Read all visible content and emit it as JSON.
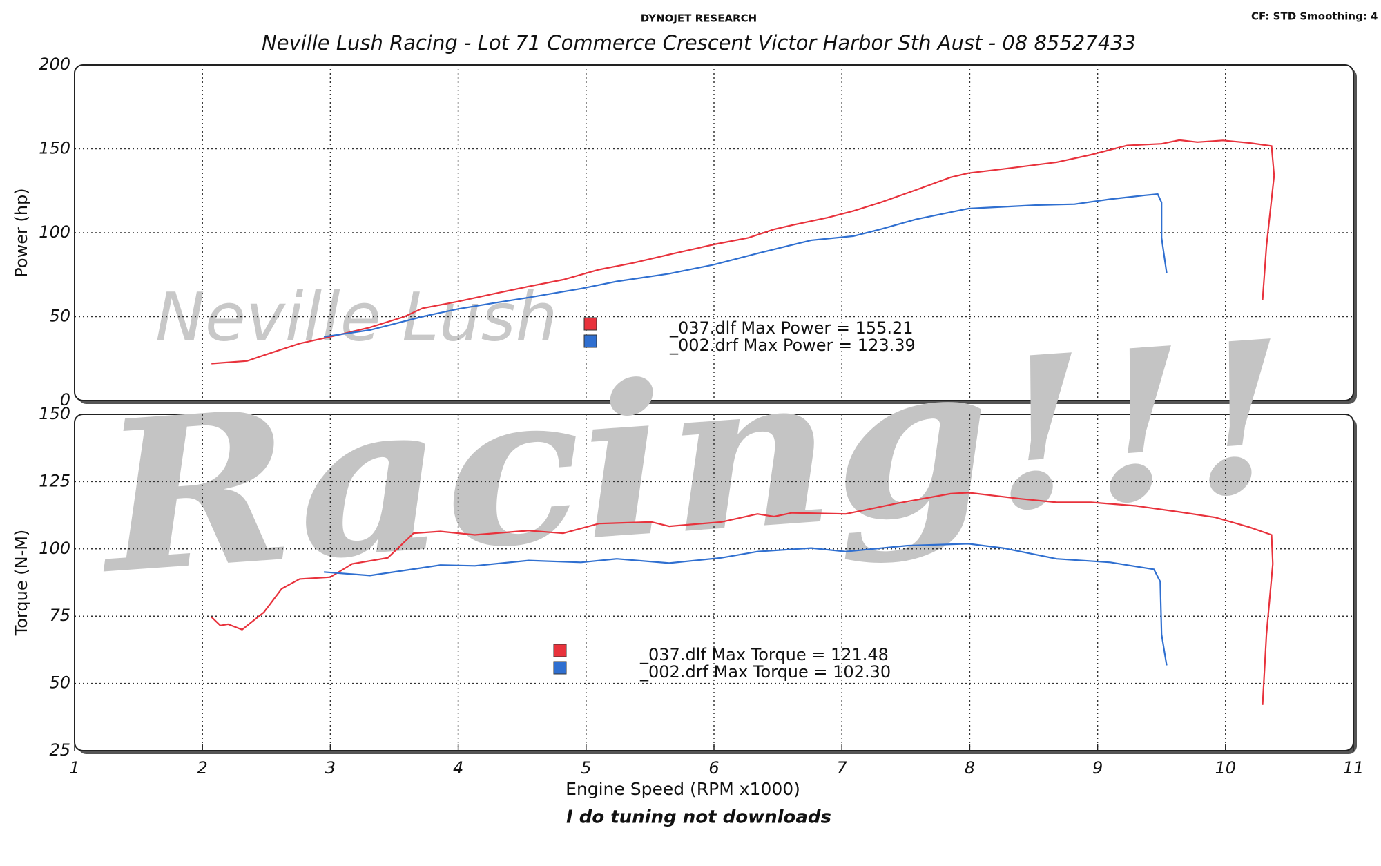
{
  "header": {
    "title": "DYNOJET RESEARCH",
    "settings": "CF: STD  Smoothing: 4",
    "subtitle": "Neville Lush Racing  - Lot 71 Commerce Crescent  Victor Harbor Sth Aust  - 08 85527433"
  },
  "watermark": [
    "Neville Lush",
    "Racing!!!"
  ],
  "footer": "I do tuning not downloads",
  "chart_data": [
    {
      "type": "line",
      "ylabel": "Power (hp)",
      "xlim": [
        1,
        11
      ],
      "xticks": [
        1,
        2,
        3,
        4,
        5,
        6,
        7,
        8,
        9,
        10,
        11
      ],
      "ylim": [
        0,
        200
      ],
      "yticks": [
        0,
        50,
        100,
        150,
        200
      ],
      "grid": true,
      "series": [
        {
          "name": "_037.dlf",
          "color": "#e8323c",
          "x": [
            2.07,
            2.35,
            2.48,
            2.76,
            3.0,
            3.31,
            3.58,
            3.72,
            4.0,
            4.27,
            4.55,
            4.82,
            5.1,
            5.37,
            5.65,
            6.0,
            6.27,
            6.47,
            6.61,
            6.89,
            7.09,
            7.3,
            7.58,
            7.85,
            7.99,
            8.26,
            8.68,
            8.95,
            9.23,
            9.5,
            9.64,
            9.78,
            9.98,
            10.19,
            10.36,
            10.38,
            10.32,
            10.29
          ],
          "values": [
            22,
            23.6,
            27,
            34,
            38,
            43.6,
            50,
            55,
            59,
            63.5,
            68,
            72,
            78,
            82,
            87,
            93,
            97,
            102,
            104.5,
            109,
            113,
            118,
            125.5,
            133,
            135.5,
            138,
            142,
            146.5,
            152,
            153,
            155.2,
            154,
            155,
            153.5,
            151.7,
            134,
            92,
            60
          ]
        },
        {
          "name": "_002.drf",
          "color": "#2f6fd0",
          "x": [
            2.95,
            3.31,
            3.72,
            4.0,
            4.27,
            4.55,
            4.96,
            5.24,
            5.65,
            6.0,
            6.34,
            6.76,
            7.09,
            7.3,
            7.58,
            7.99,
            8.54,
            8.82,
            9.1,
            9.37,
            9.47,
            9.5,
            9.5,
            9.54
          ],
          "values": [
            38,
            42,
            50,
            54.6,
            58,
            61.4,
            66.7,
            71,
            75.6,
            81,
            87.7,
            95.5,
            98,
            102,
            108,
            114.4,
            116.5,
            117,
            120,
            122.3,
            123,
            118,
            97,
            76
          ]
        }
      ],
      "annotations": [
        "_037.dlf Max Power = 155.21",
        "_002.drf Max Power = 123.39"
      ]
    },
    {
      "type": "line",
      "ylabel": "Torque (N-M)",
      "xlabel": "Engine Speed (RPM x1000)",
      "xlim": [
        1,
        11
      ],
      "xticks": [
        1,
        2,
        3,
        4,
        5,
        6,
        7,
        8,
        9,
        10,
        11
      ],
      "ylim": [
        25,
        150
      ],
      "yticks": [
        25,
        50,
        75,
        100,
        125,
        150
      ],
      "grid": true,
      "series": [
        {
          "name": "_037.dlf",
          "color": "#e8323c",
          "x": [
            2.07,
            2.14,
            2.2,
            2.31,
            2.48,
            2.62,
            2.76,
            3.0,
            3.17,
            3.45,
            3.65,
            3.86,
            4.13,
            4.55,
            4.82,
            5.1,
            5.51,
            5.65,
            6.06,
            6.34,
            6.47,
            6.61,
            7.03,
            7.44,
            7.85,
            7.99,
            8.4,
            8.68,
            8.95,
            9.3,
            9.64,
            9.92,
            10.19,
            10.36,
            10.37,
            10.32,
            10.29
          ],
          "values": [
            74.7,
            71.5,
            72,
            70,
            76.4,
            85.2,
            88.8,
            89.5,
            94.4,
            96.7,
            105.8,
            106.5,
            105.2,
            106.8,
            105.8,
            109.4,
            110,
            108.4,
            110,
            113,
            112,
            113.4,
            113,
            117,
            120.5,
            120.9,
            118.6,
            117.3,
            117.3,
            116,
            113.7,
            111.7,
            108,
            105.2,
            94.4,
            68.2,
            42
          ]
        },
        {
          "name": "_002.drf",
          "color": "#2f6fd0",
          "x": [
            2.95,
            3.31,
            3.58,
            3.86,
            4.13,
            4.55,
            4.96,
            5.24,
            5.65,
            6.06,
            6.34,
            6.76,
            7.03,
            7.51,
            7.99,
            8.26,
            8.68,
            9.1,
            9.44,
            9.49,
            9.5,
            9.54
          ],
          "values": [
            91.4,
            90.1,
            92,
            94,
            93.7,
            95.7,
            95,
            96.3,
            94.7,
            96.7,
            99,
            100.3,
            99,
            101.2,
            101.9,
            100.3,
            96.3,
            95,
            92.4,
            87.8,
            68.2,
            56.7
          ]
        }
      ],
      "annotations": [
        "_037.dlf Max Torque = 121.48",
        "_002.drf Max Torque = 102.30"
      ]
    }
  ]
}
